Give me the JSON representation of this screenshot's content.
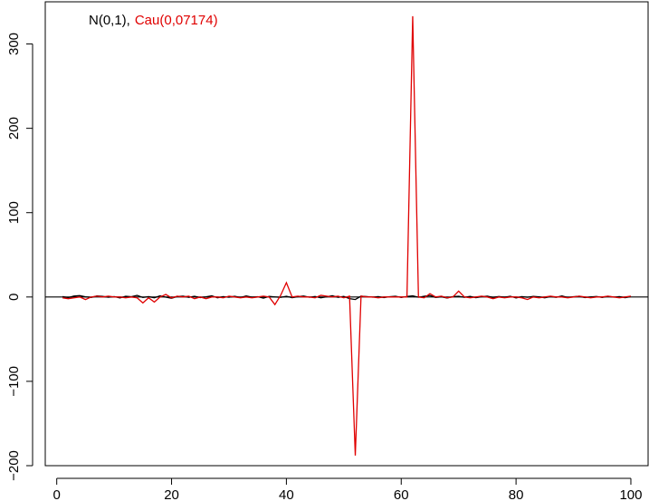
{
  "chart_data": {
    "type": "line",
    "title": "",
    "xlabel": "",
    "ylabel": "",
    "xlim": [
      -2,
      103
    ],
    "ylim": [
      -200,
      350
    ],
    "xticks": [
      0,
      20,
      40,
      60,
      80,
      100
    ],
    "yticks": [
      -200,
      -100,
      0,
      100,
      200,
      300
    ],
    "ytick_labels": [
      "−200",
      "−100",
      "0",
      "100",
      "200",
      "300"
    ],
    "grid": false,
    "legend_placement": "top-left",
    "legend": [
      {
        "text": "N(0,1),",
        "color": "#000000"
      },
      {
        "text": "Cau(0,07174)",
        "color": "#e00000"
      }
    ],
    "reference_line": {
      "y": 0,
      "color": "#000000"
    },
    "series": [
      {
        "name": "N(0,1)",
        "color": "#000000",
        "x": [
          1,
          2,
          3,
          4,
          5,
          6,
          7,
          8,
          9,
          10,
          11,
          12,
          13,
          14,
          15,
          16,
          17,
          18,
          19,
          20,
          21,
          22,
          23,
          24,
          25,
          26,
          27,
          28,
          29,
          30,
          31,
          32,
          33,
          34,
          35,
          36,
          37,
          38,
          39,
          40,
          41,
          42,
          43,
          44,
          45,
          46,
          47,
          48,
          49,
          50,
          51,
          52,
          53,
          54,
          55,
          56,
          57,
          58,
          59,
          60,
          61,
          62,
          63,
          64,
          65,
          66,
          67,
          68,
          69,
          70,
          71,
          72,
          73,
          74,
          75,
          76,
          77,
          78,
          79,
          80,
          81,
          82,
          83,
          84,
          85,
          86,
          87,
          88,
          89,
          90,
          91,
          92,
          93,
          94,
          95,
          96,
          97,
          98,
          99,
          100
        ],
        "values": [
          0.4,
          -0.8,
          1.1,
          1.6,
          0.2,
          -0.5,
          1.2,
          0.7,
          -0.3,
          0.5,
          -1.1,
          0.8,
          0.3,
          1.9,
          -0.6,
          0.4,
          -0.9,
          1.3,
          -0.2,
          -1.5,
          0.6,
          1.0,
          -0.4,
          0.9,
          -0.7,
          0.2,
          1.4,
          -1.0,
          0.5,
          -0.3,
          0.8,
          -0.6,
          1.2,
          -0.2,
          0.3,
          -1.3,
          0.7,
          0.1,
          -0.5,
          0.9,
          -0.8,
          0.4,
          1.1,
          -0.3,
          0.6,
          -0.9,
          0.2,
          1.5,
          -0.4,
          0.7,
          -2.0,
          -3.0,
          1.0,
          0.5,
          -0.2,
          0.4,
          -0.7,
          0.3,
          0.9,
          -0.5,
          0.6,
          1.4,
          -0.3,
          0.8,
          1.8,
          -0.6,
          0.2,
          -1.2,
          0.5,
          0.9,
          -0.4,
          0.7,
          -0.8,
          0.3,
          1.0,
          -0.5,
          0.6,
          -0.2,
          0.9,
          -1.1,
          0.4,
          -0.3,
          0.7,
          0.2,
          -0.9,
          0.5,
          -0.4,
          1.2,
          -0.6,
          0.3,
          0.8,
          -0.7,
          0.1,
          0.6,
          -0.5,
          0.9,
          -0.2,
          0.4,
          -0.8,
          0.5
        ]
      },
      {
        "name": "Cau(0,07174)",
        "color": "#e00000",
        "x": [
          1,
          2,
          3,
          4,
          5,
          6,
          7,
          8,
          9,
          10,
          11,
          12,
          13,
          14,
          15,
          16,
          17,
          18,
          19,
          20,
          21,
          22,
          23,
          24,
          25,
          26,
          27,
          28,
          29,
          30,
          31,
          32,
          33,
          34,
          35,
          36,
          37,
          38,
          39,
          40,
          41,
          42,
          43,
          44,
          45,
          46,
          47,
          48,
          49,
          50,
          51,
          52,
          53,
          54,
          55,
          56,
          57,
          58,
          59,
          60,
          61,
          62,
          63,
          64,
          65,
          66,
          67,
          68,
          69,
          70,
          71,
          72,
          73,
          74,
          75,
          76,
          77,
          78,
          79,
          80,
          81,
          82,
          83,
          84,
          85,
          86,
          87,
          88,
          89,
          90,
          91,
          92,
          93,
          94,
          95,
          96,
          97,
          98,
          99,
          100
        ],
        "values": [
          -1,
          -2,
          -1,
          0,
          -3,
          0,
          1,
          0,
          1,
          0,
          0,
          -1,
          0,
          -1,
          -7,
          -1,
          -6,
          0,
          3,
          -1,
          1,
          0,
          1,
          -2,
          0,
          -2,
          0,
          0,
          -1,
          1,
          0,
          -1,
          0,
          -1,
          0,
          1,
          0,
          -9,
          2,
          17,
          0,
          1,
          0,
          0,
          -1,
          2,
          1,
          0,
          1,
          -1,
          1,
          -188,
          1,
          0,
          0,
          -1,
          0,
          0,
          0,
          0,
          0,
          333,
          0,
          -1,
          4,
          0,
          1,
          -1,
          0,
          7,
          0,
          -1,
          0,
          1,
          0,
          -2,
          0,
          -1,
          0,
          0,
          -1,
          -3,
          0,
          -1,
          0,
          1,
          0,
          0,
          -1,
          0,
          1,
          0,
          -1,
          0,
          0,
          1,
          0,
          -1,
          0,
          1
        ]
      }
    ]
  }
}
